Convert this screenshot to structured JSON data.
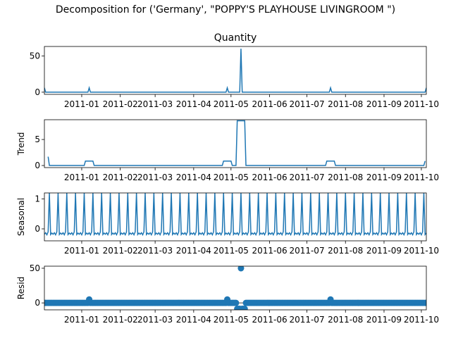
{
  "figure": {
    "suptitle": "Decomposition for ('Germany', \"POPPY'S PLAYHOUSE LIVINGROOM \")"
  },
  "chart_data": [
    {
      "type": "line",
      "title": "Quantity",
      "ylabel": "",
      "ylim": [
        -3,
        63
      ],
      "yticks": [
        0,
        50
      ],
      "xticks": [
        "2011-01",
        "2011-02",
        "2011-03",
        "2011-04",
        "2011-05",
        "2011-06",
        "2011-07",
        "2011-08",
        "2011-09",
        "2011-10"
      ],
      "x_range": [
        "2010-12-02",
        "2011-10-05"
      ],
      "color": "#1f77b4",
      "baseline": 0,
      "events": [
        {
          "start": "2010-12-02",
          "end": "2010-12-02",
          "value": 6
        },
        {
          "start": "2011-01-07",
          "end": "2011-01-07",
          "value": 6
        },
        {
          "start": "2011-04-28",
          "end": "2011-04-28",
          "value": 6
        },
        {
          "start": "2011-05-09",
          "end": "2011-05-09",
          "value": 60
        },
        {
          "start": "2011-07-20",
          "end": "2011-07-20",
          "value": 6
        },
        {
          "start": "2011-10-05",
          "end": "2011-10-05",
          "value": 6
        }
      ]
    },
    {
      "type": "line",
      "title": "",
      "ylabel": "Trend",
      "ylim": [
        -0.4,
        8.8
      ],
      "yticks": [
        0,
        5
      ],
      "xticks": [
        "2011-01",
        "2011-02",
        "2011-03",
        "2011-04",
        "2011-05",
        "2011-06",
        "2011-07",
        "2011-08",
        "2011-09",
        "2011-10"
      ],
      "x_range": [
        "2010-12-02",
        "2011-10-05"
      ],
      "color": "#1f77b4",
      "baseline": 0,
      "segments_start": {
        "date": "2010-12-05",
        "value": 1.7
      },
      "events": [
        {
          "start": "2011-01-04",
          "end": "2011-01-10",
          "value": 0.86
        },
        {
          "start": "2011-04-25",
          "end": "2011-05-01",
          "value": 0.86
        },
        {
          "start": "2011-05-06",
          "end": "2011-05-12",
          "value": 8.6
        },
        {
          "start": "2011-07-17",
          "end": "2011-07-23",
          "value": 0.86
        }
      ],
      "segments_end": {
        "date": "2011-10-04",
        "value": 0.86
      }
    },
    {
      "type": "line",
      "title": "",
      "ylabel": "Seasonal",
      "ylim": [
        -0.4,
        1.2
      ],
      "yticks": [
        0,
        1
      ],
      "xticks": [
        "2011-01",
        "2011-02",
        "2011-03",
        "2011-04",
        "2011-05",
        "2011-06",
        "2011-07",
        "2011-08",
        "2011-09",
        "2011-10"
      ],
      "x_range": [
        "2010-12-02",
        "2011-10-05"
      ],
      "color": "#1f77b4",
      "period_days": 7,
      "first_peak": "2010-12-06",
      "peak_value": 1.2,
      "low_values": [
        -0.18,
        -0.13,
        -0.2,
        -0.1,
        -0.19,
        -0.14
      ]
    },
    {
      "type": "scatter",
      "title": "",
      "ylabel": "Resid",
      "ylim": [
        -10,
        53
      ],
      "yticks": [
        0,
        50
      ],
      "xticks": [
        "2011-01",
        "2011-02",
        "2011-03",
        "2011-04",
        "2011-05",
        "2011-06",
        "2011-07",
        "2011-08",
        "2011-09",
        "2011-10"
      ],
      "x_range": [
        "2010-12-02",
        "2011-10-05"
      ],
      "color": "#1f77b4",
      "zero_line": true,
      "baseline": 0,
      "outliers": [
        {
          "date": "2011-01-07",
          "value": 5
        },
        {
          "date": "2011-04-28",
          "value": 5
        },
        {
          "date": "2011-05-06",
          "value": -8.5
        },
        {
          "date": "2011-05-07",
          "value": -8.5
        },
        {
          "date": "2011-05-08",
          "value": -8.5
        },
        {
          "date": "2011-05-09",
          "value": 50
        },
        {
          "date": "2011-05-10",
          "value": -8.5
        },
        {
          "date": "2011-05-11",
          "value": -8.5
        },
        {
          "date": "2011-05-12",
          "value": -8.5
        },
        {
          "date": "2011-07-20",
          "value": 5
        }
      ]
    }
  ]
}
